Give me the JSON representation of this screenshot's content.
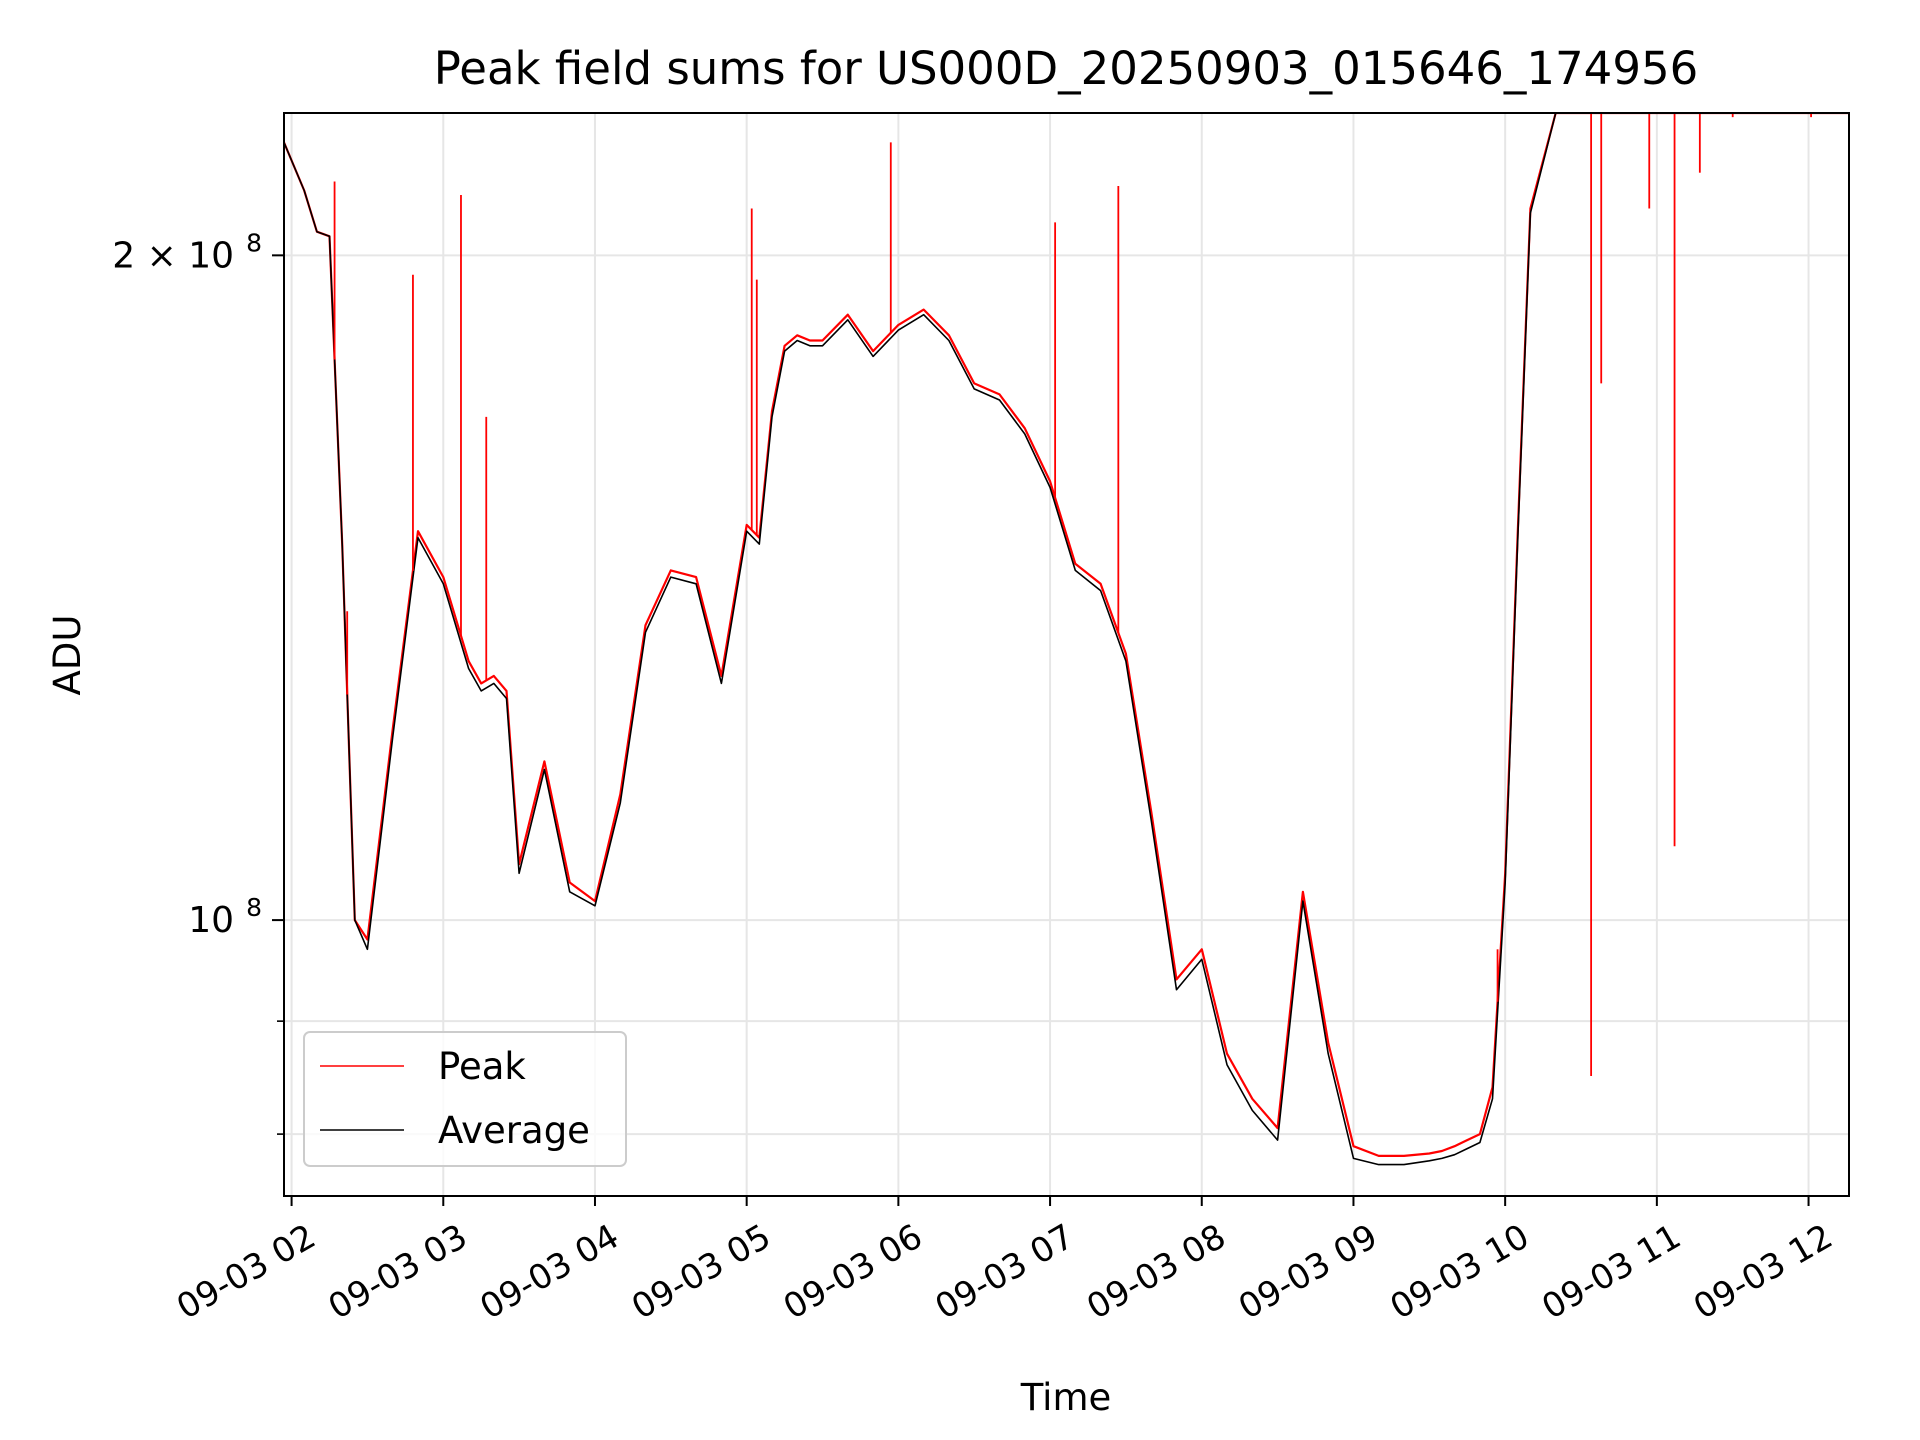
{
  "chart_data": {
    "type": "line",
    "title": "Peak field sums for US000D_20250903_015646_174956",
    "xlabel": "Time",
    "ylabel": "ADU",
    "yscale": "log",
    "xlim": [
      "09-03 01:57",
      "09-03 12:16"
    ],
    "ylim": [
      75000000,
      232000000
    ],
    "grid": true,
    "legend_position": "lower-left",
    "x_ticks": [
      "09-03 02",
      "09-03 03",
      "09-03 04",
      "09-03 05",
      "09-03 06",
      "09-03 07",
      "09-03 08",
      "09-03 09",
      "09-03 10",
      "09-03 11",
      "09-03 12"
    ],
    "y_ticks": [
      {
        "value": 200000000,
        "base": "2 × 10",
        "exp": "8"
      },
      {
        "value": 100000000,
        "base": "10",
        "exp": "8"
      }
    ],
    "y_minor_ticks": [
      90000000,
      80000000
    ],
    "series": [
      {
        "name": "Peak",
        "color": "#ff0000",
        "x": [
          "09-03 01:57",
          "09-03 02:05",
          "09-03 02:10",
          "09-03 02:15",
          "09-03 02:20",
          "09-03 02:25",
          "09-03 02:30",
          "09-03 02:40",
          "09-03 02:50",
          "09-03 03:00",
          "09-03 03:10",
          "09-03 03:15",
          "09-03 03:20",
          "09-03 03:25",
          "09-03 03:30",
          "09-03 03:40",
          "09-03 03:50",
          "09-03 04:00",
          "09-03 04:10",
          "09-03 04:20",
          "09-03 04:30",
          "09-03 04:40",
          "09-03 04:50",
          "09-03 05:00",
          "09-03 05:05",
          "09-03 05:10",
          "09-03 05:15",
          "09-03 05:20",
          "09-03 05:25",
          "09-03 05:30",
          "09-03 05:40",
          "09-03 05:50",
          "09-03 06:00",
          "09-03 06:10",
          "09-03 06:20",
          "09-03 06:30",
          "09-03 06:40",
          "09-03 06:50",
          "09-03 07:00",
          "09-03 07:10",
          "09-03 07:20",
          "09-03 07:30",
          "09-03 07:40",
          "09-03 07:50",
          "09-03 08:00",
          "09-03 08:10",
          "09-03 08:20",
          "09-03 08:30",
          "09-03 08:40",
          "09-03 08:50",
          "09-03 09:00",
          "09-03 09:10",
          "09-03 09:20",
          "09-03 09:30",
          "09-03 09:35",
          "09-03 09:40",
          "09-03 09:45",
          "09-03 09:50",
          "09-03 09:55",
          "09-03 10:00",
          "09-03 10:05",
          "09-03 10:10",
          "09-03 10:20",
          "09-03 10:30",
          "09-03 10:40",
          "09-03 10:50",
          "09-03 11:00",
          "09-03 11:10",
          "09-03 11:20",
          "09-03 11:30",
          "09-03 11:40",
          "09-03 11:50",
          "09-03 12:00",
          "09-03 12:05",
          "09-03 12:10",
          "09-03 12:16"
        ],
        "values": [
          225000000,
          214000000,
          205000000,
          204000000,
          148000000,
          100000000,
          98000000,
          122000000,
          150000000,
          143000000,
          131000000,
          128000000,
          129000000,
          127000000,
          106000000,
          118000000,
          104000000,
          102000000,
          114000000,
          136000000,
          144000000,
          143000000,
          129000000,
          151000000,
          149000000,
          170000000,
          182000000,
          184000000,
          183000000,
          183000000,
          188000000,
          181000000,
          186000000,
          189000000,
          184000000,
          175000000,
          173000000,
          167000000,
          158000000,
          145000000,
          142000000,
          132000000,
          112000000,
          94000000,
          97000000,
          87000000,
          83000000,
          80500000,
          103000000,
          88000000,
          79000000,
          78200000,
          78200000,
          78400000,
          78600000,
          79000000,
          79500000,
          80000000,
          84000000,
          105000000,
          150000000,
          210000000,
          232000000,
          232000000,
          232000000,
          232000000,
          232000000,
          232000000,
          232000000,
          232000000,
          232000000,
          232000000,
          232000000,
          232000000,
          232000000,
          232000000
        ]
      },
      {
        "name": "Average",
        "color": "#000000",
        "x": [
          "09-03 01:57",
          "09-03 02:05",
          "09-03 02:10",
          "09-03 02:15",
          "09-03 02:20",
          "09-03 02:25",
          "09-03 02:30",
          "09-03 02:40",
          "09-03 02:50",
          "09-03 03:00",
          "09-03 03:10",
          "09-03 03:15",
          "09-03 03:20",
          "09-03 03:25",
          "09-03 03:30",
          "09-03 03:40",
          "09-03 03:50",
          "09-03 04:00",
          "09-03 04:10",
          "09-03 04:20",
          "09-03 04:30",
          "09-03 04:40",
          "09-03 04:50",
          "09-03 05:00",
          "09-03 05:05",
          "09-03 05:10",
          "09-03 05:15",
          "09-03 05:20",
          "09-03 05:25",
          "09-03 05:30",
          "09-03 05:40",
          "09-03 05:50",
          "09-03 06:00",
          "09-03 06:10",
          "09-03 06:20",
          "09-03 06:30",
          "09-03 06:40",
          "09-03 06:50",
          "09-03 07:00",
          "09-03 07:10",
          "09-03 07:20",
          "09-03 07:30",
          "09-03 07:40",
          "09-03 07:50",
          "09-03 08:00",
          "09-03 08:10",
          "09-03 08:20",
          "09-03 08:30",
          "09-03 08:40",
          "09-03 08:50",
          "09-03 09:00",
          "09-03 09:10",
          "09-03 09:20",
          "09-03 09:30",
          "09-03 09:35",
          "09-03 09:40",
          "09-03 09:45",
          "09-03 09:50",
          "09-03 09:55",
          "09-03 10:00",
          "09-03 10:05",
          "09-03 10:10",
          "09-03 10:20",
          "09-03 10:30",
          "09-03 10:40",
          "09-03 10:50",
          "09-03 11:00",
          "09-03 11:10",
          "09-03 11:20",
          "09-03 11:30",
          "09-03 11:40",
          "09-03 11:50",
          "09-03 12:00",
          "09-03 12:05",
          "09-03 12:10",
          "09-03 12:16"
        ],
        "values": [
          225000000,
          214000000,
          205000000,
          204000000,
          148000000,
          100000000,
          97000000,
          121000000,
          149000000,
          142000000,
          130000000,
          127000000,
          128000000,
          126000000,
          105000000,
          117000000,
          103000000,
          101500000,
          113000000,
          135000000,
          143000000,
          142000000,
          128000000,
          150000000,
          148000000,
          169000000,
          181000000,
          183000000,
          182000000,
          182000000,
          187000000,
          180000000,
          185000000,
          188000000,
          183000000,
          174000000,
          172000000,
          166000000,
          157000000,
          144000000,
          141000000,
          131000000,
          111000000,
          93000000,
          96000000,
          86000000,
          82000000,
          79500000,
          102000000,
          87000000,
          78000000,
          77500000,
          77500000,
          77800000,
          78000000,
          78300000,
          78800000,
          79300000,
          83000000,
          104000000,
          149000000,
          209000000,
          232000000,
          232000000,
          232000000,
          232000000,
          232000000,
          232000000,
          232000000,
          232000000,
          232000000,
          232000000,
          232000000,
          232000000,
          232000000,
          232000000
        ]
      }
    ],
    "spikes": {
      "color": "#ff0000",
      "points": [
        {
          "x": "09-03 02:17",
          "value": 216000000
        },
        {
          "x": "09-03 02:22",
          "value": 138000000
        },
        {
          "x": "09-03 02:48",
          "value": 196000000
        },
        {
          "x": "09-03 03:07",
          "value": 213000000
        },
        {
          "x": "09-03 03:17",
          "value": 169000000
        },
        {
          "x": "09-03 05:02",
          "value": 210000000
        },
        {
          "x": "09-03 05:04",
          "value": 195000000
        },
        {
          "x": "09-03 05:57",
          "value": 225000000
        },
        {
          "x": "09-03 07:02",
          "value": 207000000
        },
        {
          "x": "09-03 07:27",
          "value": 215000000
        },
        {
          "x": "09-03 09:57",
          "value": 97000000
        },
        {
          "x": "09-03 10:34",
          "value": 85000000
        },
        {
          "x": "09-03 10:38",
          "value": 175000000
        },
        {
          "x": "09-03 10:57",
          "value": 210000000
        },
        {
          "x": "09-03 11:07",
          "value": 108000000
        },
        {
          "x": "09-03 11:17",
          "value": 218000000
        },
        {
          "x": "09-03 11:30",
          "value": 231000000
        },
        {
          "x": "09-03 12:01",
          "value": 231000000
        }
      ]
    }
  }
}
